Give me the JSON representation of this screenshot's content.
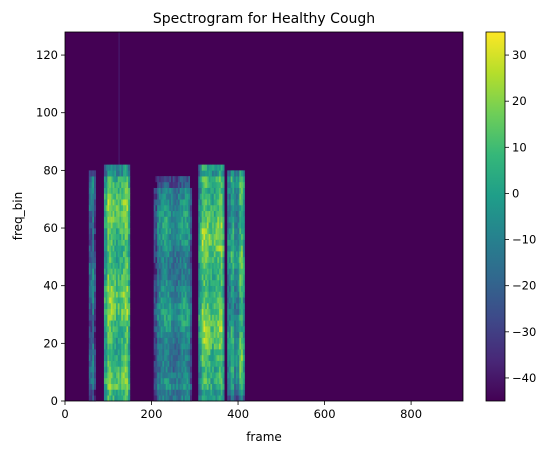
{
  "chart_data": {
    "type": "heatmap",
    "title": "Spectrogram for Healthy Cough",
    "xlabel": "frame",
    "ylabel": "freq_bin",
    "xlim": [
      0,
      920
    ],
    "ylim": [
      0,
      128
    ],
    "x_ticks": [
      0,
      200,
      400,
      600,
      800
    ],
    "y_ticks": [
      0,
      20,
      40,
      60,
      80,
      100,
      120
    ],
    "colormap": "viridis",
    "colorbar": {
      "min": -45,
      "max": 35,
      "ticks": [
        -40,
        -30,
        -20,
        -10,
        0,
        10,
        20,
        30
      ]
    },
    "background_value": -45,
    "segments": [
      {
        "x_start": 55,
        "x_end": 70,
        "freq_max": 80,
        "level": -12
      },
      {
        "x_start": 90,
        "x_end": 150,
        "freq_max": 81,
        "level": 12
      },
      {
        "x_start": 205,
        "x_end": 290,
        "freq_max": 77,
        "level": -8
      },
      {
        "x_start": 308,
        "x_end": 368,
        "freq_max": 81,
        "level": 12
      },
      {
        "x_start": 375,
        "x_end": 392,
        "freq_max": 80,
        "level": 8
      },
      {
        "x_start": 395,
        "x_end": 412,
        "freq_max": 80,
        "level": 6
      }
    ],
    "grid": false
  },
  "colors": {
    "viridis": [
      "#440154",
      "#482878",
      "#3e4989",
      "#31688e",
      "#26828e",
      "#1f9e89",
      "#35b779",
      "#6ece58",
      "#b5de2b",
      "#fde725"
    ]
  }
}
